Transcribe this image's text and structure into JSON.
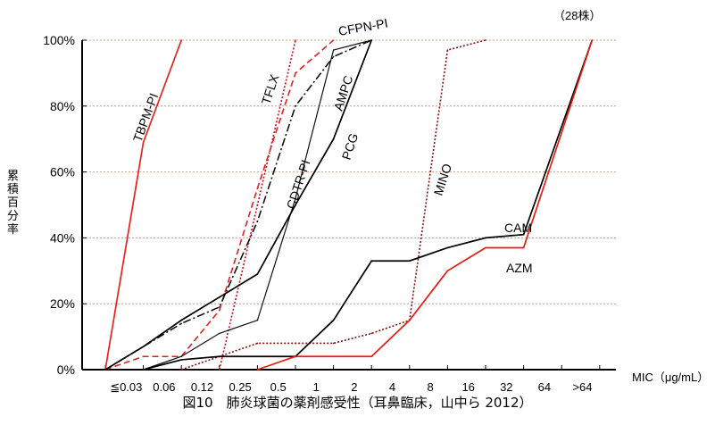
{
  "chart_data": {
    "type": "line",
    "title": "",
    "caption": "図10　肺炎球菌の薬剤感受性（耳鼻臨床，山中ら 2012）",
    "note": "（28株）",
    "xlabel": "MIC（μg/mL）",
    "ylabel": "累積百分率",
    "categories": [
      "≦0.03",
      "0.06",
      "0.12",
      "0.25",
      "0.5",
      "1",
      "2",
      "4",
      "8",
      "16",
      "32",
      "64",
      ">64"
    ],
    "x_note": "x values are positions on the MIC scale: 0 = origin, 1 = ≦0.03, 2 = 0.06, ... 13 = >64",
    "yticks": [
      "0%",
      "20%",
      "40%",
      "60%",
      "80%",
      "100%"
    ],
    "ylim": [
      0,
      100
    ],
    "grid": true,
    "series": [
      {
        "name": "TBPM-PI",
        "color": "#e8231a",
        "style": "solid",
        "x": [
          0,
          1,
          2
        ],
        "y": [
          0,
          69,
          100
        ]
      },
      {
        "name": "TFLX",
        "color": "#c8101a",
        "style": "dotted",
        "x": [
          3,
          4,
          5
        ],
        "y": [
          0,
          50,
          100
        ]
      },
      {
        "name": "CFPN-PI",
        "color": "#e02020",
        "style": "dashed",
        "x": [
          0,
          1,
          2,
          3,
          4,
          5,
          6
        ],
        "y": [
          0,
          4,
          4,
          18,
          55,
          90,
          100
        ]
      },
      {
        "name": "CDTR-PI",
        "color": "#111111",
        "style": "thin",
        "x": [
          1,
          2,
          3,
          4,
          5,
          6,
          7
        ],
        "y": [
          0,
          4,
          11,
          15,
          52,
          97,
          100
        ]
      },
      {
        "name": "AMPC",
        "color": "#111111",
        "style": "dashdot",
        "x": [
          0,
          1,
          2,
          3,
          4,
          5,
          6,
          7
        ],
        "y": [
          0,
          7,
          14,
          19,
          45,
          80,
          95,
          100
        ]
      },
      {
        "name": "PCG",
        "color": "#000000",
        "style": "solid",
        "x": [
          0,
          1,
          2,
          3,
          4,
          5,
          6,
          7
        ],
        "y": [
          0,
          7,
          15,
          22,
          29,
          50,
          70,
          100
        ]
      },
      {
        "name": "MINO",
        "color": "#8a1010",
        "style": "dotted",
        "x": [
          2,
          3,
          4,
          5,
          6,
          7,
          8,
          9,
          10
        ],
        "y": [
          0,
          4,
          8,
          8,
          8,
          11,
          15,
          97,
          100
        ]
      },
      {
        "name": "CAM",
        "color": "#000000",
        "style": "solid",
        "x": [
          1,
          2,
          3,
          4,
          5,
          6,
          7,
          8,
          9,
          10,
          11,
          12.8
        ],
        "y": [
          0,
          3,
          4,
          4,
          4,
          15,
          33,
          33,
          37,
          40,
          41,
          100
        ]
      },
      {
        "name": "AZM",
        "color": "#e81c10",
        "style": "solid",
        "x": [
          4,
          5,
          6,
          7,
          8,
          9,
          10,
          11,
          12.8
        ],
        "y": [
          0,
          4,
          4,
          4,
          15,
          30,
          37,
          37,
          100
        ]
      }
    ],
    "series_labels": [
      "TBPM-PI",
      "TFLX",
      "CFPN-PI",
      "CDTR-PI",
      "AMPC",
      "PCG",
      "MINO",
      "CAM",
      "AZM"
    ]
  }
}
